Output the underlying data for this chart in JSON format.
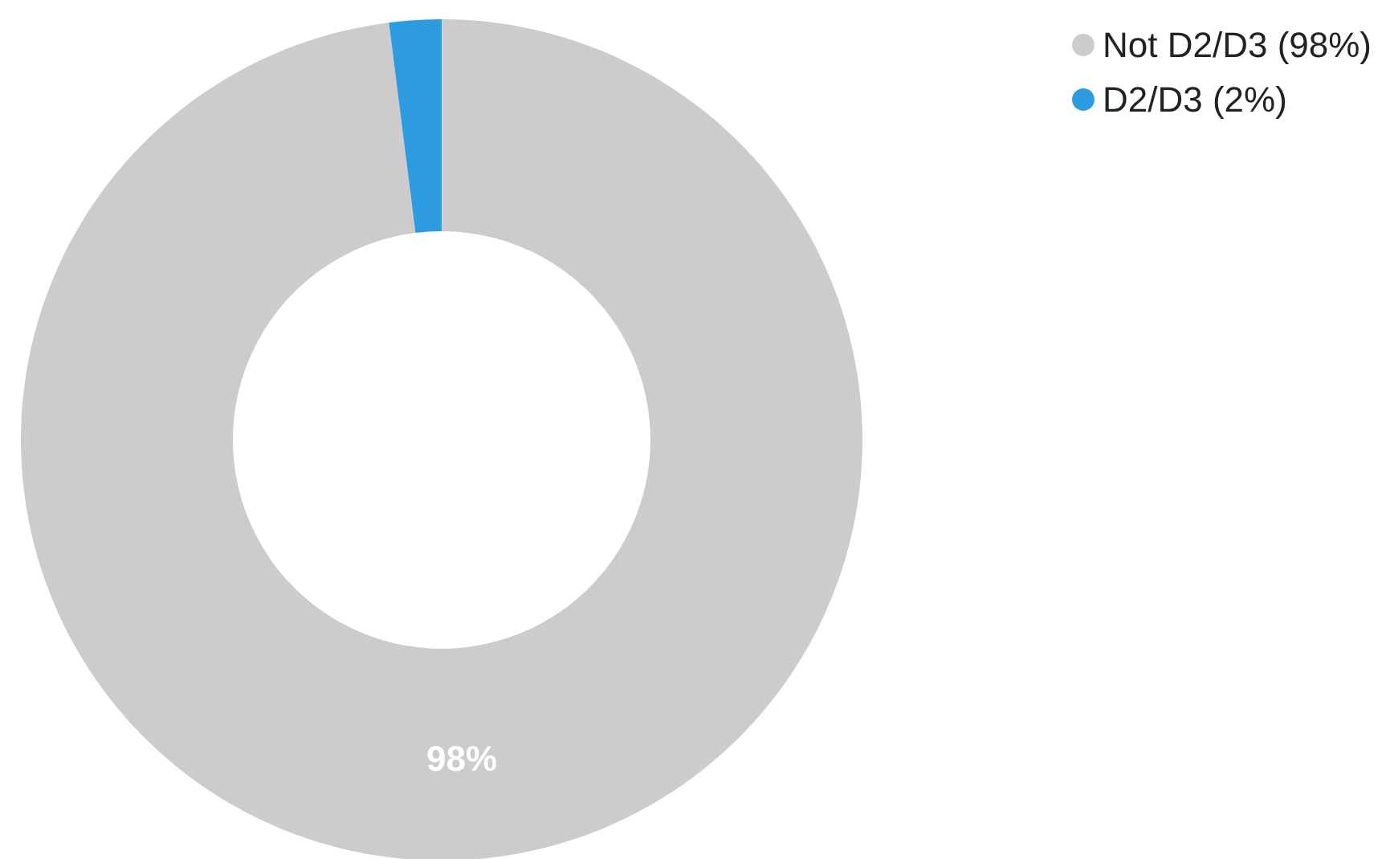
{
  "chart_data": {
    "type": "donut",
    "categories": [
      "Not D2/D3 (98%)",
      "D2/D3 (2%)"
    ],
    "values": [
      98,
      2
    ],
    "colors": [
      "#cccccc",
      "#2d9be0"
    ],
    "value_labels": [
      "98%",
      null
    ],
    "legend": "top right"
  }
}
